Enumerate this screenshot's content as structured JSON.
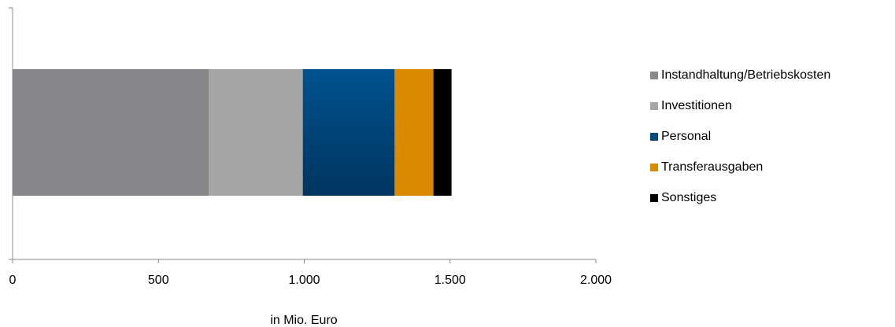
{
  "chart_data": {
    "type": "bar",
    "orientation": "horizontal",
    "stacked": true,
    "xlabel": "in Mio. Euro",
    "xlim": [
      0,
      2000
    ],
    "xticks": [
      {
        "value": 0,
        "label": "0"
      },
      {
        "value": 500,
        "label": "500"
      },
      {
        "value": 1000,
        "label": "1.000"
      },
      {
        "value": 1500,
        "label": "1.500"
      },
      {
        "value": 2000,
        "label": "2.000"
      }
    ],
    "grid": false,
    "legend_position": "right",
    "series": [
      {
        "name": "Instandhaltung/Betriebskosten",
        "value": 673,
        "color": "#87878a"
      },
      {
        "name": "Investitionen",
        "value": 322,
        "color": "#a6a6a6"
      },
      {
        "name": "Personal",
        "value": 315,
        "color": "#004a80"
      },
      {
        "name": "Transferausgaben",
        "value": 133,
        "color": "#d98a00"
      },
      {
        "name": "Sonstiges",
        "value": 62,
        "color": "#000000"
      }
    ]
  }
}
